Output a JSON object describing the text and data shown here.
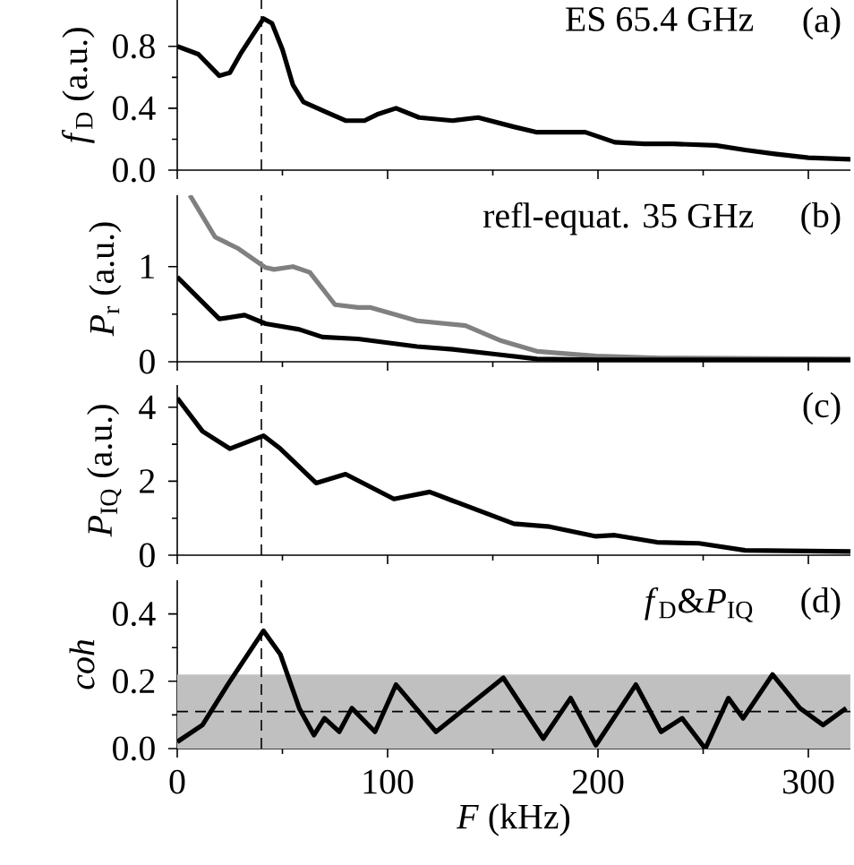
{
  "chart_data": [
    {
      "type": "line",
      "ylabel": "*f*$_{D}$ (a.u.)",
      "annotations": [
        "ES 65.4 GHz",
        "(a)"
      ],
      "xlim": [
        0,
        320
      ],
      "xticks": [
        0,
        100,
        200,
        300
      ],
      "ylim": [
        0,
        1.1
      ],
      "yticks": [
        {
          "value": 0,
          "label": "0.0"
        },
        {
          "value": 0.4,
          "label": "0.4"
        },
        {
          "value": 0.8,
          "label": "0.8"
        }
      ],
      "tick_labels": "y",
      "ref_lines": [
        {
          "axis": "x",
          "value": 40,
          "line_style": "dashed"
        }
      ],
      "series": [
        {
          "color": "#000000",
          "x": [
            0,
            10,
            20,
            25,
            30,
            41,
            45,
            50,
            55,
            60,
            70,
            80,
            89,
            95,
            104,
            115,
            131,
            143,
            160,
            171,
            194,
            208,
            222,
            236,
            256,
            270,
            284,
            300,
            320
          ],
          "values": [
            0.8,
            0.75,
            0.61,
            0.63,
            0.75,
            0.98,
            0.95,
            0.78,
            0.55,
            0.44,
            0.38,
            0.32,
            0.32,
            0.36,
            0.4,
            0.34,
            0.32,
            0.34,
            0.28,
            0.245,
            0.245,
            0.18,
            0.17,
            0.17,
            0.16,
            0.13,
            0.105,
            0.08,
            0.07
          ]
        }
      ]
    },
    {
      "type": "line",
      "ylabel": "*P*$_{r}$ (a.u.)",
      "annotations": [
        "refl-equat. 35 GHz",
        "(b)"
      ],
      "xlim": [
        0,
        320
      ],
      "xticks": [
        0,
        100,
        200,
        300
      ],
      "ylim": [
        0,
        1.75
      ],
      "yticks": [
        0,
        1
      ],
      "tick_labels": "y",
      "ref_lines": [
        {
          "axis": "x",
          "value": 40,
          "line_style": "dashed"
        }
      ],
      "series": [
        {
          "color": "#808080",
          "x": [
            6,
            18,
            29,
            42,
            46,
            55,
            63,
            75,
            86,
            92,
            114,
            137,
            154,
            171,
            199,
            230,
            320
          ],
          "values": [
            1.75,
            1.31,
            1.19,
            0.99,
            0.97,
            1.0,
            0.94,
            0.6,
            0.57,
            0.57,
            0.43,
            0.38,
            0.22,
            0.11,
            0.06,
            0.04,
            0.03
          ]
        },
        {
          "color": "#000000",
          "x": [
            0,
            20,
            32,
            42,
            58,
            69,
            86,
            114,
            131,
            151,
            171,
            200,
            320
          ],
          "values": [
            0.89,
            0.45,
            0.49,
            0.4,
            0.34,
            0.26,
            0.24,
            0.16,
            0.13,
            0.08,
            0.03,
            0.02,
            0.02
          ]
        }
      ]
    },
    {
      "type": "line",
      "ylabel": "*P*$_{IQ}$ (a.u.)",
      "annotations": [
        "(c)"
      ],
      "xlim": [
        0,
        320
      ],
      "xticks": [
        0,
        100,
        200,
        300
      ],
      "ylim": [
        0,
        4.6
      ],
      "yticks": [
        0,
        2,
        4
      ],
      "tick_labels": "y",
      "ref_lines": [
        {
          "axis": "x",
          "value": 40,
          "line_style": "dashed"
        }
      ],
      "series": [
        {
          "color": "#000000",
          "x": [
            0,
            12,
            25,
            41,
            49,
            66,
            80,
            103,
            120,
            131,
            160,
            177,
            199,
            208,
            228,
            248,
            270,
            320
          ],
          "values": [
            4.25,
            3.35,
            2.88,
            3.23,
            2.88,
            1.95,
            2.19,
            1.52,
            1.71,
            1.47,
            0.85,
            0.77,
            0.51,
            0.54,
            0.35,
            0.32,
            0.13,
            0.1
          ]
        }
      ]
    },
    {
      "type": "line",
      "ylabel": "*coh*",
      "xlabel": "*F*  (kHz)",
      "annotations": [
        "*f*$_{D}$&*P*$_{IQ}$",
        "(d)"
      ],
      "xlim": [
        0,
        320
      ],
      "xticks": [
        0,
        100,
        200,
        300
      ],
      "ylim": [
        0,
        0.5
      ],
      "yticks": [
        {
          "value": 0,
          "label": "0.0"
        },
        {
          "value": 0.2,
          "label": "0.2"
        },
        {
          "value": 0.4,
          "label": "0.4"
        }
      ],
      "bands": [
        {
          "axis": "y",
          "from": 0,
          "to": 0.22,
          "color": "#c0c0c0"
        }
      ],
      "ref_lines": [
        {
          "axis": "x",
          "value": 40,
          "line_style": "dashed"
        },
        {
          "axis": "y",
          "value": 0.11,
          "line_style": "dashed"
        }
      ],
      "series": [
        {
          "color": "#000000",
          "x": [
            0,
            12,
            24,
            41,
            49,
            58,
            65,
            70,
            77,
            83,
            94,
            104,
            123,
            155,
            174,
            187,
            199,
            218,
            230,
            240,
            251,
            262,
            269,
            283,
            296,
            307,
            318
          ],
          "values": [
            0.02,
            0.07,
            0.19,
            0.35,
            0.28,
            0.12,
            0.04,
            0.09,
            0.05,
            0.12,
            0.05,
            0.19,
            0.05,
            0.21,
            0.03,
            0.15,
            0.01,
            0.19,
            0.05,
            0.09,
            0.0,
            0.15,
            0.09,
            0.22,
            0.12,
            0.07,
            0.12
          ]
        }
      ]
    }
  ]
}
